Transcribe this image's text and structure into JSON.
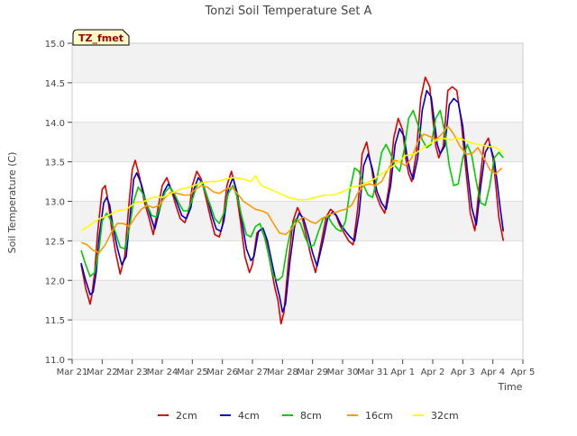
{
  "chart_data": {
    "type": "line",
    "title": "Tonzi Soil Temperature Set A",
    "xlabel": "Time",
    "ylabel": "Soil Temperature (C)",
    "ylim": [
      11.0,
      15.0
    ],
    "xlim": [
      0,
      15
    ],
    "y_ticks": [
      11.0,
      11.5,
      12.0,
      12.5,
      13.0,
      13.5,
      14.0,
      14.5,
      15.0
    ],
    "y_tick_labels": [
      "11.0",
      "11.5",
      "12.0",
      "12.5",
      "13.0",
      "13.5",
      "14.0",
      "14.5",
      "15.0"
    ],
    "x_ticks": [
      0,
      1,
      2,
      3,
      4,
      5,
      6,
      7,
      8,
      9,
      10,
      11,
      12,
      13,
      14,
      15
    ],
    "x_tick_labels": [
      "Mar 21",
      "Mar 22",
      "Mar 23",
      "Mar 24",
      "Mar 25",
      "Mar 26",
      "Mar 27",
      "Mar 28",
      "Mar 29",
      "Mar 30",
      "Mar 31",
      "Apr 1",
      "Apr 2",
      "Apr 3",
      "Apr 4",
      "Apr 5"
    ],
    "x_units": "days since Mar 21 00:00",
    "site_badge": "TZ_fmet",
    "grid": "horizontal bands",
    "legend_position": "bottom-center",
    "series": [
      {
        "name": "2cm",
        "color": "#dd0000",
        "x": [
          0.3,
          0.45,
          0.6,
          0.65,
          0.75,
          0.85,
          1.0,
          1.1,
          1.2,
          1.3,
          1.45,
          1.6,
          1.75,
          1.9,
          2.0,
          2.1,
          2.25,
          2.4,
          2.55,
          2.7,
          2.85,
          3.0,
          3.15,
          3.3,
          3.45,
          3.6,
          3.75,
          3.9,
          4.0,
          4.15,
          4.3,
          4.45,
          4.6,
          4.75,
          4.9,
          5.0,
          5.15,
          5.3,
          5.45,
          5.6,
          5.75,
          5.9,
          6.0,
          6.15,
          6.3,
          6.45,
          6.6,
          6.75,
          6.85,
          6.95,
          7.05,
          7.2,
          7.35,
          7.5,
          7.65,
          7.8,
          7.95,
          8.1,
          8.3,
          8.45,
          8.6,
          8.75,
          8.9,
          9.05,
          9.2,
          9.35,
          9.5,
          9.65,
          9.8,
          9.95,
          10.1,
          10.25,
          10.4,
          10.55,
          10.7,
          10.85,
          11.0,
          11.1,
          11.2,
          11.3,
          11.45,
          11.6,
          11.75,
          11.9,
          12.0,
          12.1,
          12.2,
          12.35,
          12.5,
          12.65,
          12.8,
          12.95,
          13.1,
          13.25,
          13.4,
          13.55,
          13.7,
          13.85,
          14.0,
          14.1,
          14.2,
          14.35
        ],
        "values": [
          12.2,
          11.9,
          11.7,
          11.8,
          12.1,
          12.6,
          13.15,
          13.2,
          13.0,
          12.7,
          12.35,
          12.08,
          12.3,
          13.0,
          13.4,
          13.52,
          13.3,
          13.0,
          12.8,
          12.58,
          12.9,
          13.2,
          13.3,
          13.15,
          12.95,
          12.78,
          12.73,
          12.9,
          13.2,
          13.38,
          13.28,
          13.05,
          12.8,
          12.58,
          12.55,
          12.7,
          13.2,
          13.38,
          13.15,
          12.75,
          12.3,
          12.1,
          12.2,
          12.6,
          12.65,
          12.5,
          12.2,
          11.9,
          11.75,
          11.45,
          11.6,
          12.25,
          12.75,
          12.92,
          12.8,
          12.55,
          12.3,
          12.1,
          12.5,
          12.8,
          12.9,
          12.85,
          12.7,
          12.6,
          12.5,
          12.45,
          12.9,
          13.6,
          13.75,
          13.45,
          13.1,
          12.95,
          12.85,
          13.2,
          13.8,
          14.05,
          13.9,
          13.55,
          13.35,
          13.25,
          13.6,
          14.3,
          14.57,
          14.45,
          14.05,
          13.7,
          13.55,
          13.7,
          14.4,
          14.45,
          14.4,
          14.0,
          13.4,
          12.85,
          12.63,
          13.2,
          13.7,
          13.8,
          13.55,
          13.2,
          12.8,
          12.5
        ]
      },
      {
        "name": "4cm",
        "color": "#0000cc",
        "x": [
          0.3,
          0.45,
          0.6,
          0.7,
          0.8,
          0.9,
          1.05,
          1.15,
          1.25,
          1.35,
          1.5,
          1.65,
          1.8,
          1.95,
          2.05,
          2.15,
          2.3,
          2.45,
          2.6,
          2.75,
          2.9,
          3.05,
          3.2,
          3.35,
          3.5,
          3.65,
          3.8,
          3.95,
          4.05,
          4.2,
          4.35,
          4.5,
          4.65,
          4.8,
          4.95,
          5.05,
          5.2,
          5.35,
          5.5,
          5.65,
          5.8,
          5.95,
          6.05,
          6.2,
          6.35,
          6.5,
          6.65,
          6.8,
          6.9,
          7.0,
          7.1,
          7.25,
          7.4,
          7.55,
          7.7,
          7.85,
          8.0,
          8.15,
          8.35,
          8.5,
          8.65,
          8.8,
          8.95,
          9.1,
          9.25,
          9.4,
          9.55,
          9.7,
          9.85,
          10.0,
          10.15,
          10.3,
          10.45,
          10.6,
          10.75,
          10.9,
          11.05,
          11.15,
          11.25,
          11.35,
          11.5,
          11.65,
          11.8,
          11.95,
          12.05,
          12.15,
          12.25,
          12.4,
          12.55,
          12.7,
          12.85,
          13.0,
          13.15,
          13.3,
          13.45,
          13.6,
          13.75,
          13.9,
          14.05,
          14.15,
          14.25,
          14.35
        ],
        "values": [
          12.22,
          12.0,
          11.82,
          11.85,
          12.1,
          12.55,
          12.98,
          13.05,
          12.95,
          12.7,
          12.42,
          12.2,
          12.3,
          12.9,
          13.28,
          13.36,
          13.22,
          13.0,
          12.82,
          12.65,
          12.88,
          13.12,
          13.22,
          13.12,
          12.97,
          12.82,
          12.78,
          12.92,
          13.15,
          13.3,
          13.22,
          13.05,
          12.82,
          12.65,
          12.62,
          12.75,
          13.15,
          13.3,
          13.1,
          12.75,
          12.4,
          12.25,
          12.3,
          12.62,
          12.66,
          12.5,
          12.22,
          11.95,
          11.8,
          11.6,
          11.7,
          12.25,
          12.68,
          12.85,
          12.78,
          12.58,
          12.35,
          12.18,
          12.5,
          12.78,
          12.86,
          12.82,
          12.7,
          12.62,
          12.55,
          12.5,
          12.85,
          13.45,
          13.6,
          13.4,
          13.12,
          12.98,
          12.9,
          13.2,
          13.72,
          13.92,
          13.82,
          13.55,
          13.38,
          13.28,
          13.55,
          14.15,
          14.4,
          14.32,
          14.02,
          13.72,
          13.6,
          13.7,
          14.22,
          14.3,
          14.25,
          13.95,
          13.4,
          12.92,
          12.7,
          13.2,
          13.62,
          13.72,
          13.52,
          13.22,
          12.9,
          12.62
        ]
      },
      {
        "name": "8cm",
        "color": "#00cc00",
        "x": [
          0.3,
          0.45,
          0.6,
          0.75,
          0.9,
          1.0,
          1.15,
          1.3,
          1.45,
          1.6,
          1.75,
          1.9,
          2.05,
          2.2,
          2.35,
          2.5,
          2.65,
          2.8,
          2.95,
          3.1,
          3.25,
          3.4,
          3.55,
          3.7,
          3.85,
          4.0,
          4.15,
          4.3,
          4.45,
          4.6,
          4.75,
          4.9,
          5.05,
          5.2,
          5.35,
          5.5,
          5.65,
          5.8,
          5.95,
          6.1,
          6.25,
          6.4,
          6.55,
          6.7,
          6.85,
          7.0,
          7.15,
          7.3,
          7.45,
          7.6,
          7.75,
          7.9,
          8.05,
          8.2,
          8.35,
          8.5,
          8.65,
          8.8,
          8.95,
          9.1,
          9.25,
          9.4,
          9.55,
          9.7,
          9.85,
          10.0,
          10.15,
          10.3,
          10.45,
          10.6,
          10.75,
          10.9,
          11.05,
          11.2,
          11.35,
          11.5,
          11.65,
          11.8,
          11.95,
          12.1,
          12.25,
          12.4,
          12.55,
          12.7,
          12.85,
          13.0,
          13.15,
          13.3,
          13.45,
          13.6,
          13.75,
          13.9,
          14.05,
          14.2,
          14.35
        ],
        "values": [
          12.38,
          12.2,
          12.05,
          12.1,
          12.4,
          12.75,
          12.85,
          12.75,
          12.6,
          12.42,
          12.4,
          12.65,
          13.0,
          13.18,
          13.1,
          12.95,
          12.82,
          12.8,
          12.95,
          13.12,
          13.18,
          13.1,
          12.98,
          12.88,
          12.88,
          13.02,
          13.2,
          13.25,
          13.1,
          12.95,
          12.78,
          12.72,
          12.85,
          13.1,
          13.2,
          13.05,
          12.8,
          12.58,
          12.55,
          12.68,
          12.72,
          12.55,
          12.3,
          12.05,
          12.0,
          12.05,
          12.4,
          12.68,
          12.78,
          12.72,
          12.55,
          12.42,
          12.45,
          12.62,
          12.78,
          12.82,
          12.72,
          12.65,
          12.62,
          12.75,
          13.15,
          13.42,
          13.38,
          13.2,
          13.08,
          13.05,
          13.3,
          13.62,
          13.72,
          13.6,
          13.45,
          13.38,
          13.65,
          14.05,
          14.15,
          13.98,
          13.78,
          13.68,
          13.72,
          14.05,
          14.15,
          13.88,
          13.45,
          13.2,
          13.22,
          13.55,
          13.72,
          13.58,
          13.25,
          12.98,
          12.95,
          13.2,
          13.55,
          13.62,
          13.55
        ]
      },
      {
        "name": "16cm",
        "color": "#ff9900",
        "x": [
          0.3,
          0.5,
          0.7,
          0.9,
          1.1,
          1.3,
          1.5,
          1.7,
          1.9,
          2.1,
          2.3,
          2.5,
          2.7,
          2.9,
          3.1,
          3.3,
          3.5,
          3.7,
          3.9,
          4.1,
          4.3,
          4.5,
          4.7,
          4.9,
          5.1,
          5.3,
          5.5,
          5.7,
          5.9,
          6.1,
          6.3,
          6.5,
          6.7,
          6.9,
          7.1,
          7.3,
          7.5,
          7.7,
          7.9,
          8.1,
          8.3,
          8.5,
          8.7,
          8.9,
          9.1,
          9.3,
          9.5,
          9.7,
          9.9,
          10.1,
          10.3,
          10.5,
          10.7,
          10.9,
          11.1,
          11.3,
          11.5,
          11.7,
          11.9,
          12.1,
          12.3,
          12.5,
          12.7,
          12.9,
          13.1,
          13.3,
          13.5,
          13.7,
          13.9,
          14.1,
          14.3
        ],
        "values": [
          12.48,
          12.45,
          12.38,
          12.35,
          12.45,
          12.6,
          12.72,
          12.72,
          12.68,
          12.8,
          12.9,
          12.95,
          12.92,
          12.95,
          13.05,
          13.12,
          13.1,
          13.08,
          13.08,
          13.15,
          13.2,
          13.18,
          13.12,
          13.1,
          13.15,
          13.18,
          13.1,
          13.0,
          12.95,
          12.9,
          12.88,
          12.85,
          12.72,
          12.6,
          12.58,
          12.65,
          12.75,
          12.8,
          12.75,
          12.72,
          12.78,
          12.82,
          12.85,
          12.88,
          12.9,
          12.95,
          13.1,
          13.2,
          13.22,
          13.2,
          13.25,
          13.4,
          13.52,
          13.5,
          13.45,
          13.55,
          13.75,
          13.85,
          13.82,
          13.78,
          13.85,
          13.95,
          13.85,
          13.7,
          13.6,
          13.6,
          13.68,
          13.55,
          13.4,
          13.35,
          13.42
        ]
      },
      {
        "name": "32cm",
        "color": "#ffff00",
        "x": [
          0.3,
          0.6,
          0.9,
          1.2,
          1.5,
          1.8,
          2.1,
          2.4,
          2.7,
          3.0,
          3.3,
          3.6,
          3.9,
          4.2,
          4.5,
          4.8,
          5.1,
          5.4,
          5.7,
          5.95,
          6.1,
          6.3,
          6.6,
          6.9,
          7.2,
          7.5,
          7.8,
          8.1,
          8.4,
          8.7,
          9.0,
          9.3,
          9.6,
          9.9,
          10.2,
          10.5,
          10.8,
          11.1,
          11.4,
          11.7,
          12.0,
          12.3,
          12.6,
          12.9,
          13.2,
          13.5,
          13.8,
          14.1,
          14.35
        ],
        "values": [
          12.63,
          12.7,
          12.78,
          12.82,
          12.88,
          12.9,
          12.98,
          13.0,
          13.05,
          13.05,
          13.1,
          13.15,
          13.18,
          13.22,
          13.25,
          13.25,
          13.28,
          13.3,
          13.28,
          13.25,
          13.32,
          13.2,
          13.15,
          13.1,
          13.05,
          13.02,
          13.02,
          13.05,
          13.08,
          13.08,
          13.12,
          13.18,
          13.2,
          13.25,
          13.32,
          13.4,
          13.48,
          13.58,
          13.6,
          13.68,
          13.75,
          13.8,
          13.78,
          13.8,
          13.75,
          13.72,
          13.7,
          13.68,
          13.62
        ]
      }
    ]
  }
}
